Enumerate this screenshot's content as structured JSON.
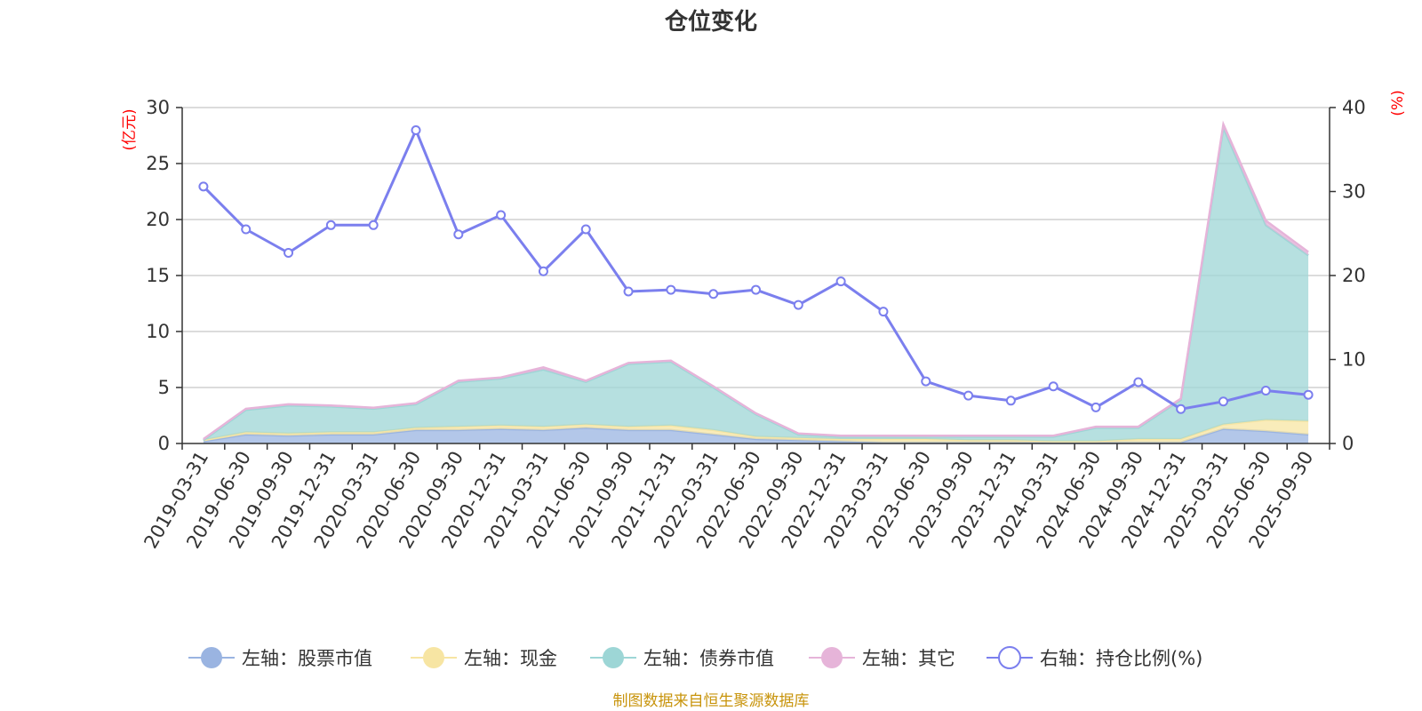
{
  "chart_data": {
    "type": "area",
    "title": "仓位变化",
    "left_unit": "(亿元)",
    "right_unit": "(%)",
    "source_note": "制图数据来自恒生聚源数据库",
    "x": [
      "2019-03-31",
      "2019-06-30",
      "2019-09-30",
      "2019-12-31",
      "2020-03-31",
      "2020-06-30",
      "2020-09-30",
      "2020-12-31",
      "2021-03-31",
      "2021-06-30",
      "2021-09-30",
      "2021-12-31",
      "2022-03-31",
      "2022-06-30",
      "2022-09-30",
      "2022-12-31",
      "2023-03-31",
      "2023-06-30",
      "2023-09-30",
      "2023-12-31",
      "2024-03-31",
      "2024-06-30",
      "2024-09-30",
      "2024-12-31",
      "2025-03-31",
      "2025-06-30",
      "2025-09-30"
    ],
    "y_left": {
      "min": 0,
      "max": 30,
      "ticks": [
        "0",
        "5",
        "10",
        "15",
        "20",
        "25",
        "30"
      ]
    },
    "y_right": {
      "min": 0,
      "max": 40,
      "ticks": [
        "0",
        "10",
        "20",
        "30",
        "40"
      ]
    },
    "grid": true,
    "legend_position": "bottom",
    "series": [
      {
        "name": "左轴：股票市值",
        "axis": "left",
        "kind": "area-stacked",
        "color": "#9ab4e1",
        "values": [
          0.2,
          0.8,
          0.7,
          0.8,
          0.8,
          1.2,
          1.2,
          1.3,
          1.2,
          1.4,
          1.2,
          1.2,
          0.8,
          0.4,
          0.3,
          0.2,
          0.1,
          0.1,
          0.1,
          0.1,
          0.1,
          0.1,
          0.1,
          0.1,
          1.3,
          1.1,
          0.8
        ]
      },
      {
        "name": "左轴：现金",
        "axis": "left",
        "kind": "area-stacked",
        "color": "#f7e5a3",
        "values": [
          0.1,
          0.2,
          0.2,
          0.2,
          0.2,
          0.2,
          0.3,
          0.3,
          0.3,
          0.3,
          0.3,
          0.4,
          0.4,
          0.2,
          0.2,
          0.2,
          0.3,
          0.3,
          0.2,
          0.2,
          0.1,
          0.1,
          0.3,
          0.3,
          0.4,
          1.0,
          1.2
        ]
      },
      {
        "name": "左轴：债券市值",
        "axis": "left",
        "kind": "area-stacked",
        "color": "#9dd6d6",
        "values": [
          0,
          2.0,
          2.5,
          2.3,
          2.1,
          2.1,
          4.0,
          4.2,
          5.1,
          3.8,
          5.6,
          5.7,
          3.8,
          2.0,
          0.3,
          0.2,
          0.2,
          0.2,
          0.3,
          0.3,
          0.4,
          1.2,
          1.0,
          3.5,
          26.5,
          17.4,
          14.8
        ]
      },
      {
        "name": "左轴：其它",
        "axis": "left",
        "kind": "area-stacked",
        "color": "#e6b4d9",
        "values": [
          0.1,
          0.1,
          0.1,
          0.1,
          0.1,
          0.1,
          0.1,
          0.1,
          0.2,
          0.1,
          0.1,
          0.1,
          0.1,
          0.1,
          0.1,
          0.1,
          0.1,
          0.1,
          0.1,
          0.1,
          0.1,
          0.1,
          0.1,
          0.1,
          0.3,
          0.4,
          0.3
        ]
      },
      {
        "name": "右轴：持仓比例(%)",
        "axis": "right",
        "kind": "line",
        "color": "#7b7fee",
        "values": [
          30.6,
          25.5,
          22.7,
          26.0,
          26.0,
          37.3,
          24.9,
          27.2,
          20.5,
          25.5,
          18.1,
          18.3,
          17.8,
          18.3,
          16.5,
          19.3,
          15.7,
          7.4,
          5.7,
          5.1,
          6.8,
          4.3,
          7.3,
          4.1,
          5.0,
          6.3,
          5.8
        ]
      }
    ]
  }
}
